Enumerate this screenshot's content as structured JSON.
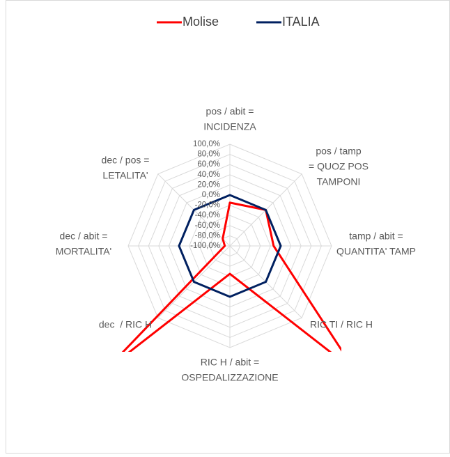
{
  "chart_data": {
    "type": "radar",
    "categories": [
      [
        "pos / abit =",
        "INCIDENZA"
      ],
      [
        "pos / tamp",
        "= QUOZ POS",
        "TAMPONI"
      ],
      [
        "tamp / abit =",
        "QUANTITA' TAMP"
      ],
      [
        "RIC TI / RIC H"
      ],
      [
        "RIC H / abit =",
        "OSPEDALIZZAZIONE"
      ],
      [
        "dec  / RIC H"
      ],
      [
        "dec / abit =",
        "MORTALITA'"
      ],
      [
        "dec / pos =",
        "LETALITA'"
      ]
    ],
    "series": [
      {
        "name": "Molise",
        "color": "#ff0000",
        "values": [
          -15,
          0,
          -14,
          250,
          -45,
          250,
          -90,
          -80
        ]
      },
      {
        "name": "ITALIA",
        "color": "#002060",
        "values": [
          0,
          0,
          0,
          0,
          0,
          0,
          0,
          0
        ]
      }
    ],
    "ylim": [
      -100,
      100
    ],
    "yticks": [
      {
        "value": 100,
        "label": "100,0%"
      },
      {
        "value": 80,
        "label": "80,0%"
      },
      {
        "value": 60,
        "label": "60,0%"
      },
      {
        "value": 40,
        "label": "40,0%"
      },
      {
        "value": 20,
        "label": "20,0%"
      },
      {
        "value": 0,
        "label": "0,0%"
      },
      {
        "value": -20,
        "label": "-20,0%"
      },
      {
        "value": -40,
        "label": "-40,0%"
      },
      {
        "value": -60,
        "label": "-60,0%"
      },
      {
        "value": -80,
        "label": "-80,0%"
      },
      {
        "value": -100,
        "label": "-100,0%"
      }
    ],
    "grid": true,
    "legend": "top"
  }
}
